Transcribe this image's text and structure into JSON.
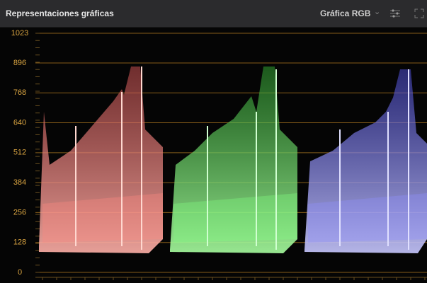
{
  "header": {
    "title": "Representaciones gráficas",
    "mode": "Gráfica RGB"
  },
  "scope": {
    "ylim": [
      0,
      1023
    ],
    "yticks": [
      1023,
      896,
      768,
      640,
      512,
      384,
      256,
      128,
      0
    ]
  }
}
